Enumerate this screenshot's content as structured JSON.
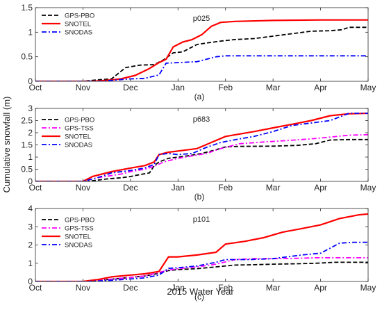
{
  "figure": {
    "ylabel": "Cumulative snowfall (m)",
    "xlabel": "2015 Water Year"
  },
  "chart_data": [
    {
      "type": "line",
      "panel_label": "(a)",
      "title": "p025",
      "x_ticks": [
        "Oct",
        "Nov",
        "Dec",
        "Jan",
        "Feb",
        "Mar",
        "Apr",
        "May"
      ],
      "y_ticks": [
        "0",
        "0.5",
        "1",
        "1.5"
      ],
      "xlim": [
        0,
        7
      ],
      "ylim": [
        0,
        1.5
      ],
      "legend_position": "top-left",
      "series": [
        {
          "name": "GPS-PBO",
          "color": "#000000",
          "dash": "dashed",
          "x": [
            0,
            1.0,
            1.3,
            1.6,
            1.9,
            2.2,
            2.5,
            2.7,
            2.9,
            3.1,
            3.4,
            3.6,
            3.9,
            4.2,
            4.6,
            5.0,
            5.4,
            5.8,
            6.2,
            6.45,
            6.6,
            7.0
          ],
          "y": [
            0,
            0,
            0.03,
            0.05,
            0.28,
            0.33,
            0.34,
            0.44,
            0.58,
            0.6,
            0.75,
            0.78,
            0.82,
            0.85,
            0.87,
            0.92,
            0.97,
            1.02,
            1.03,
            1.05,
            1.1,
            1.1
          ]
        },
        {
          "name": "SNOTEL",
          "color": "#ff0000",
          "dash": "solid",
          "x": [
            0,
            1.2,
            1.5,
            1.8,
            2.1,
            2.4,
            2.6,
            2.75,
            2.9,
            3.1,
            3.3,
            3.5,
            3.7,
            3.9,
            4.2,
            5.0,
            6.0,
            7.0
          ],
          "y": [
            0,
            0,
            0.02,
            0.05,
            0.12,
            0.26,
            0.38,
            0.45,
            0.7,
            0.8,
            0.85,
            0.95,
            1.12,
            1.2,
            1.22,
            1.24,
            1.25,
            1.25
          ]
        },
        {
          "name": "SNODAS",
          "color": "#0000ff",
          "dash": "dashdot",
          "x": [
            0,
            1.4,
            1.6,
            2.0,
            2.3,
            2.6,
            2.75,
            3.0,
            3.4,
            3.6,
            3.8,
            4.0,
            5.0,
            6.0,
            7.0
          ],
          "y": [
            0,
            0,
            0.02,
            0.05,
            0.06,
            0.13,
            0.37,
            0.38,
            0.4,
            0.45,
            0.5,
            0.52,
            0.52,
            0.52,
            0.52
          ]
        }
      ]
    },
    {
      "type": "line",
      "panel_label": "(b)",
      "title": "p683",
      "x_ticks": [
        "Oct",
        "Nov",
        "Dec",
        "Jan",
        "Feb",
        "Mar",
        "Apr",
        "May"
      ],
      "y_ticks": [
        "0",
        "0.5",
        "1",
        "1.5",
        "2",
        "2.5",
        "3"
      ],
      "xlim": [
        0,
        7
      ],
      "ylim": [
        0,
        3
      ],
      "legend_position": "top-left",
      "series": [
        {
          "name": "GPS-PBO",
          "color": "#000000",
          "dash": "dashed",
          "x": [
            0,
            1.1,
            1.3,
            1.5,
            1.8,
            2.0,
            2.2,
            2.4,
            2.5,
            2.6,
            2.8,
            3.0,
            3.2,
            3.5,
            3.8,
            4.0,
            4.3,
            5.0,
            5.5,
            5.9,
            6.2,
            6.6,
            7.0
          ],
          "y": [
            0,
            0,
            0.05,
            0.1,
            0.15,
            0.2,
            0.28,
            0.35,
            0.65,
            0.8,
            0.95,
            1.0,
            1.05,
            1.15,
            1.3,
            1.42,
            1.44,
            1.45,
            1.48,
            1.55,
            1.7,
            1.72,
            1.72
          ]
        },
        {
          "name": "GPS-TSS",
          "color": "#ff00ff",
          "dash": "dashdot",
          "x": [
            0,
            1.0,
            1.3,
            1.8,
            2.0,
            2.3,
            2.5,
            2.7,
            3.0,
            3.3,
            3.6,
            3.9,
            4.3,
            4.8,
            5.3,
            5.8,
            6.2,
            6.6,
            7.0
          ],
          "y": [
            0,
            0,
            0.15,
            0.3,
            0.4,
            0.5,
            0.62,
            0.8,
            0.95,
            1.05,
            1.15,
            1.35,
            1.55,
            1.62,
            1.68,
            1.75,
            1.82,
            1.9,
            1.92
          ]
        },
        {
          "name": "SNOTEL",
          "color": "#ff0000",
          "dash": "solid",
          "x": [
            0,
            1.0,
            1.2,
            1.6,
            2.0,
            2.3,
            2.5,
            2.6,
            2.8,
            3.0,
            3.4,
            3.7,
            4.0,
            4.3,
            4.6,
            5.0,
            5.4,
            5.8,
            6.2,
            6.6,
            7.0
          ],
          "y": [
            0,
            0,
            0.2,
            0.4,
            0.55,
            0.65,
            0.8,
            1.1,
            1.2,
            1.25,
            1.35,
            1.6,
            1.85,
            1.95,
            2.05,
            2.2,
            2.35,
            2.5,
            2.7,
            2.78,
            2.8
          ]
        },
        {
          "name": "SNODAS",
          "color": "#0000ff",
          "dash": "dashdot",
          "x": [
            0,
            1.0,
            1.3,
            1.6,
            2.0,
            2.3,
            2.5,
            2.6,
            2.8,
            3.0,
            3.3,
            3.6,
            3.9,
            4.3,
            4.6,
            5.0,
            5.4,
            5.8,
            6.2,
            6.6,
            7.0
          ],
          "y": [
            0,
            0,
            0.15,
            0.35,
            0.45,
            0.55,
            0.7,
            1.1,
            1.15,
            1.1,
            1.15,
            1.4,
            1.6,
            1.75,
            1.85,
            2.05,
            2.3,
            2.4,
            2.5,
            2.8,
            2.8
          ]
        }
      ]
    },
    {
      "type": "line",
      "panel_label": "(c)",
      "title": "p101",
      "x_ticks": [
        "Oct",
        "Nov",
        "Dec",
        "Jan",
        "Feb",
        "Mar",
        "Apr",
        "May"
      ],
      "y_ticks": [
        "0",
        "1",
        "2",
        "3",
        "4"
      ],
      "xlim": [
        0,
        7
      ],
      "ylim": [
        0,
        4
      ],
      "legend_position": "top-left",
      "series": [
        {
          "name": "GPS-PBO",
          "color": "#000000",
          "dash": "dashed",
          "x": [
            0,
            1.1,
            1.5,
            1.9,
            2.3,
            2.6,
            2.8,
            3.0,
            3.4,
            3.8,
            4.2,
            4.6,
            5.0,
            5.5,
            5.9,
            6.3,
            7.0
          ],
          "y": [
            0,
            0,
            0.1,
            0.2,
            0.3,
            0.45,
            0.6,
            0.65,
            0.7,
            0.8,
            0.9,
            0.92,
            0.95,
            0.97,
            1.0,
            1.05,
            1.05
          ]
        },
        {
          "name": "GPS-TSS",
          "color": "#ff00ff",
          "dash": "dashdot",
          "x": [
            0,
            1.1,
            1.5,
            1.9,
            2.3,
            2.6,
            2.8,
            3.0,
            3.4,
            3.8,
            4.2,
            4.6,
            5.0,
            5.5,
            5.9,
            6.3,
            7.0
          ],
          "y": [
            0,
            0,
            0.1,
            0.2,
            0.3,
            0.5,
            0.62,
            0.7,
            0.8,
            0.95,
            1.2,
            1.25,
            1.25,
            1.27,
            1.3,
            1.3,
            1.3
          ]
        },
        {
          "name": "SNOTEL",
          "color": "#ff0000",
          "dash": "solid",
          "x": [
            0,
            1.0,
            1.3,
            1.6,
            2.0,
            2.3,
            2.6,
            2.8,
            3.0,
            3.4,
            3.8,
            4.0,
            4.4,
            4.8,
            5.2,
            5.6,
            6.0,
            6.4,
            6.8,
            7.0
          ],
          "y": [
            0,
            0,
            0.1,
            0.25,
            0.35,
            0.42,
            0.55,
            1.35,
            1.35,
            1.45,
            1.6,
            2.05,
            2.2,
            2.4,
            2.7,
            2.9,
            3.1,
            3.45,
            3.65,
            3.7
          ]
        },
        {
          "name": "SNODAS",
          "color": "#0000ff",
          "dash": "dashdot",
          "x": [
            0,
            1.1,
            1.5,
            1.9,
            2.3,
            2.6,
            2.8,
            3.0,
            3.4,
            3.8,
            4.0,
            4.5,
            5.0,
            5.6,
            6.0,
            6.4,
            6.7,
            7.0
          ],
          "y": [
            0,
            0,
            0.05,
            0.12,
            0.2,
            0.35,
            0.72,
            0.75,
            0.85,
            1.05,
            1.2,
            1.2,
            1.25,
            1.45,
            1.55,
            2.1,
            2.15,
            2.15
          ]
        }
      ]
    }
  ]
}
